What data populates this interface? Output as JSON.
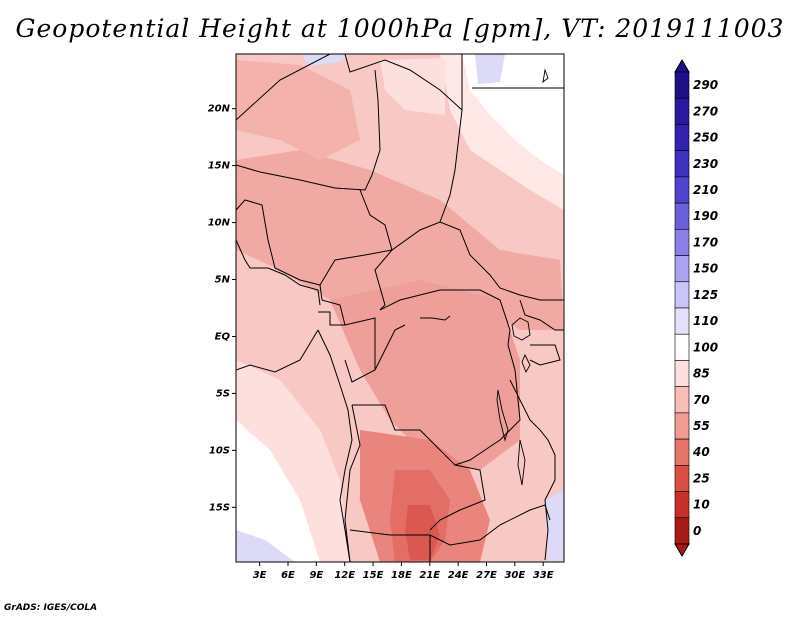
{
  "title": "Geopotential Height at 1000hPa [gpm], VT: 2019111003",
  "credit": "GrADS: IGES/COLA",
  "map": {
    "lat_labels": [
      "20N",
      "15N",
      "10N",
      "5N",
      "EQ",
      "5S",
      "10S",
      "15S"
    ],
    "lat_values": [
      20,
      15,
      10,
      5,
      0,
      -5,
      -10,
      -15
    ],
    "lon_labels": [
      "3E",
      "6E",
      "9E",
      "12E",
      "15E",
      "18E",
      "21E",
      "24E",
      "27E",
      "30E",
      "33E"
    ],
    "lon_values": [
      3,
      6,
      9,
      12,
      15,
      18,
      21,
      24,
      27,
      30,
      33
    ],
    "lat_range": [
      -19.8,
      24.8
    ],
    "lon_range": [
      0.5,
      35.2
    ]
  },
  "colorbar": {
    "labels": [
      "290",
      "270",
      "250",
      "230",
      "210",
      "190",
      "170",
      "150",
      "125",
      "110",
      "100",
      "85",
      "70",
      "55",
      "40",
      "25",
      "10",
      "0"
    ],
    "colors": [
      "#1e0f8a",
      "#2819a0",
      "#3322b2",
      "#3d30c2",
      "#4e44d0",
      "#6a5fdc",
      "#8a80e8",
      "#aaa4f0",
      "#c9c5f7",
      "#e4e2fb",
      "#ffffff",
      "#fde0de",
      "#f9bdb7",
      "#f19b93",
      "#e77369",
      "#db4d45",
      "#c8302c",
      "#a81a18"
    ],
    "colors_min": "#a81a18",
    "colors_max": "#1e0f8a"
  }
}
